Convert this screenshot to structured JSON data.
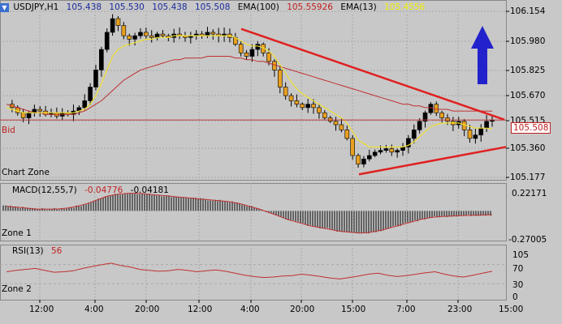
{
  "header": {
    "symbol": "USDJPY,H1",
    "open": "105.438",
    "high": "105.530",
    "low": "105.438",
    "close": "105.508",
    "ema_slow_label": "EMA(100)",
    "ema_slow_value": "105.55926",
    "ema_fast_label": "EMA(13)",
    "ema_fast_value": "105.4556"
  },
  "zones": {
    "main_label": "Chart Zone",
    "zone1_label": "Zone 1",
    "zone2_label": "Zone 2"
  },
  "bid": {
    "label": "Bid",
    "value": "105.508"
  },
  "macd": {
    "label": "MACD(12,55,7)",
    "value1": "-0.04776",
    "value2": "-0.04181",
    "top_tick": "0.22171",
    "bottom_tick": "-0.27005"
  },
  "rsi": {
    "label": "RSI(13)",
    "value": "56",
    "ticks": [
      "105",
      "70",
      "30",
      "0"
    ]
  },
  "colors": {
    "background": "#c8c8c8",
    "grid": "#a8a8a8",
    "bull_body": "#000000",
    "bear_body": "#e8a020",
    "ema_fast": "#f0e030",
    "ema_slow": "#c03030",
    "trendline": "#e02020",
    "bid_line": "#c04040",
    "arrow": "#2222cc",
    "value_blue": "#1a2a9a",
    "value_red": "#c02020",
    "value_yellow": "#f0f000"
  },
  "chart_data": {
    "type": "candlestick",
    "price_axis_ticks": [
      "106.154",
      "105.980",
      "105.825",
      "105.670",
      "105.515",
      "105.360",
      "105.177"
    ],
    "time_axis_ticks": [
      "12:00",
      "4:00",
      "20:00",
      "12:00",
      "4:00",
      "20:00",
      "15:00",
      "7:00",
      "23:00",
      "15:00"
    ],
    "close_path": [
      105.6,
      105.58,
      105.55,
      105.52,
      105.55,
      105.57,
      105.56,
      105.54,
      105.55,
      105.53,
      105.55,
      105.54,
      105.56,
      105.58,
      105.62,
      105.7,
      105.8,
      105.92,
      106.02,
      106.1,
      106.06,
      106.0,
      105.98,
      106.0,
      106.02,
      106.0,
      105.99,
      106.01,
      106.0,
      105.99,
      106.01,
      106.0,
      105.99,
      106.0,
      106.01,
      106.0,
      106.02,
      106.01,
      106.0,
      106.01,
      105.99,
      105.95,
      105.9,
      105.88,
      105.92,
      105.95,
      105.9,
      105.85,
      105.8,
      105.7,
      105.65,
      105.62,
      105.6,
      105.58,
      105.6,
      105.58,
      105.55,
      105.52,
      105.5,
      105.48,
      105.45,
      105.4,
      105.3,
      105.25,
      105.28,
      105.3,
      105.32,
      105.33,
      105.34,
      105.32,
      105.33,
      105.35,
      105.4,
      105.45,
      105.5,
      105.55,
      105.6,
      105.55,
      105.52,
      105.5,
      105.48,
      105.5,
      105.45,
      105.4,
      105.42,
      105.46,
      105.5,
      105.508
    ],
    "ema_fast": [
      105.58,
      105.57,
      105.56,
      105.55,
      105.55,
      105.55,
      105.55,
      105.55,
      105.55,
      105.55,
      105.55,
      105.55,
      105.55,
      105.56,
      105.57,
      105.6,
      105.65,
      105.72,
      105.8,
      105.88,
      105.92,
      105.94,
      105.95,
      105.96,
      105.97,
      105.98,
      105.98,
      105.99,
      105.99,
      105.99,
      106.0,
      106.0,
      106.0,
      106.0,
      106.0,
      106.0,
      106.0,
      106.0,
      106.0,
      106.0,
      106.0,
      105.99,
      105.97,
      105.95,
      105.94,
      105.94,
      105.93,
      105.91,
      105.88,
      105.83,
      105.78,
      105.73,
      105.69,
      105.66,
      105.64,
      105.62,
      105.6,
      105.58,
      105.56,
      105.54,
      105.52,
      105.49,
      105.44,
      105.39,
      105.37,
      105.35,
      105.35,
      105.35,
      105.35,
      105.35,
      105.35,
      105.35,
      105.36,
      105.38,
      105.41,
      105.44,
      105.47,
      105.48,
      105.49,
      105.49,
      105.49,
      105.49,
      105.48,
      105.47,
      105.46,
      105.46,
      105.46,
      105.4556
    ],
    "ema_slow": [
      105.6,
      105.59,
      105.58,
      105.57,
      105.56,
      105.55,
      105.55,
      105.54,
      105.54,
      105.54,
      105.54,
      105.54,
      105.54,
      105.55,
      105.56,
      105.58,
      105.6,
      105.62,
      105.65,
      105.68,
      105.71,
      105.74,
      105.76,
      105.78,
      105.8,
      105.81,
      105.82,
      105.83,
      105.84,
      105.85,
      105.86,
      105.86,
      105.87,
      105.87,
      105.87,
      105.87,
      105.88,
      105.88,
      105.88,
      105.88,
      105.88,
      105.87,
      105.87,
      105.86,
      105.86,
      105.85,
      105.85,
      105.84,
      105.83,
      105.82,
      105.81,
      105.8,
      105.79,
      105.78,
      105.77,
      105.76,
      105.75,
      105.74,
      105.73,
      105.72,
      105.71,
      105.7,
      105.69,
      105.68,
      105.67,
      105.66,
      105.65,
      105.64,
      105.63,
      105.62,
      105.61,
      105.6,
      105.6,
      105.59,
      105.59,
      105.58,
      105.58,
      105.57,
      105.57,
      105.57,
      105.56,
      105.56,
      105.56,
      105.56,
      105.56,
      105.56,
      105.56,
      105.55926
    ],
    "trendlines": [
      {
        "from": [
          "4:00",
          106.04
        ],
        "to": [
          "15:00",
          105.51
        ],
        "color": "#e02020"
      },
      {
        "from": [
          "15:00",
          105.19
        ],
        "to": [
          "15:00",
          105.35
        ],
        "color": "#e02020"
      }
    ],
    "macd_signal": [
      0.05,
      0.04,
      0.03,
      0.02,
      0.02,
      0.02,
      0.03,
      0.05,
      0.08,
      0.12,
      0.16,
      0.18,
      0.19,
      0.19,
      0.18,
      0.17,
      0.16,
      0.15,
      0.14,
      0.13,
      0.12,
      0.11,
      0.1,
      0.08,
      0.05,
      0.02,
      -0.02,
      -0.06,
      -0.1,
      -0.13,
      -0.16,
      -0.18,
      -0.2,
      -0.22,
      -0.23,
      -0.24,
      -0.23,
      -0.21,
      -0.18,
      -0.15,
      -0.12,
      -0.09,
      -0.07,
      -0.06,
      -0.055,
      -0.05,
      -0.048,
      -0.045,
      -0.04181
    ],
    "rsi_values": [
      55,
      58,
      60,
      62,
      58,
      54,
      55,
      57,
      62,
      66,
      70,
      73,
      68,
      65,
      60,
      58,
      56,
      57,
      60,
      58,
      55,
      57,
      59,
      56,
      52,
      48,
      45,
      43,
      44,
      46,
      47,
      50,
      48,
      45,
      42,
      40,
      43,
      46,
      50,
      52,
      48,
      45,
      47,
      50,
      53,
      55,
      50,
      46,
      44,
      48,
      52,
      56
    ]
  }
}
